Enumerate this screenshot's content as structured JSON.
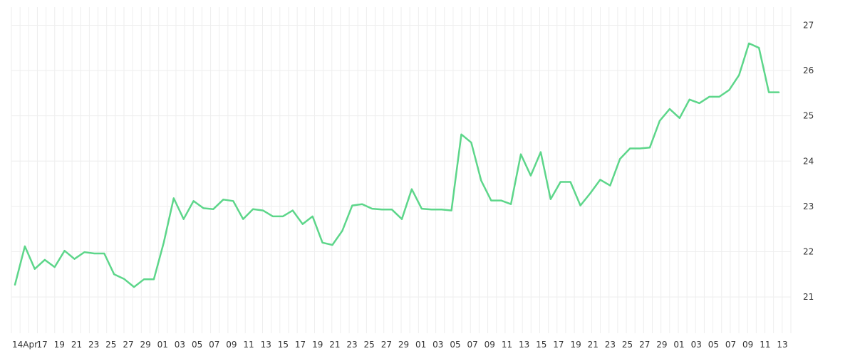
{
  "chart_data": {
    "type": "line",
    "title": "",
    "xlabel": "",
    "ylabel": "",
    "ylim": [
      20.2,
      27.4
    ],
    "y_ticks": [
      21,
      22,
      23,
      24,
      25,
      26,
      27
    ],
    "y_axis_position": "right",
    "grid": true,
    "legend": "none",
    "line_color": "#5dd68a",
    "x_tick_labels": [
      "14Apr",
      "17",
      "19",
      "21",
      "23",
      "25",
      "27",
      "29",
      "01",
      "03",
      "05",
      "07",
      "09",
      "11",
      "13",
      "15",
      "17",
      "19",
      "21",
      "23",
      "25",
      "27",
      "29",
      "01",
      "03",
      "05",
      "07",
      "09",
      "11",
      "13",
      "15",
      "17",
      "19",
      "21",
      "23",
      "25",
      "27",
      "29",
      "01",
      "03",
      "05",
      "07",
      "09",
      "11",
      "13"
    ],
    "series": [
      {
        "values": [
          21.27,
          22.12,
          21.62,
          21.82,
          21.66,
          22.02,
          21.84,
          21.99,
          21.96,
          21.96,
          21.5,
          21.4,
          21.22,
          21.39,
          21.39,
          22.2,
          23.18,
          22.72,
          23.12,
          22.96,
          22.94,
          23.15,
          23.12,
          22.72,
          22.94,
          22.91,
          22.78,
          22.78,
          22.91,
          22.61,
          22.78,
          22.2,
          22.15,
          22.46,
          23.02,
          23.05,
          22.95,
          22.93,
          22.93,
          22.72,
          23.38,
          22.95,
          22.93,
          22.93,
          22.91,
          24.59,
          24.41,
          23.57,
          23.13,
          23.13,
          23.05,
          24.15,
          23.68,
          24.2,
          23.16,
          23.54,
          23.54,
          23.02,
          23.29,
          23.59,
          23.46,
          24.05,
          24.28,
          24.28,
          24.3,
          24.89,
          25.15,
          24.95,
          25.36,
          25.28,
          25.42,
          25.42,
          25.57,
          25.9,
          26.6,
          26.5,
          25.52,
          25.52
        ]
      }
    ]
  }
}
